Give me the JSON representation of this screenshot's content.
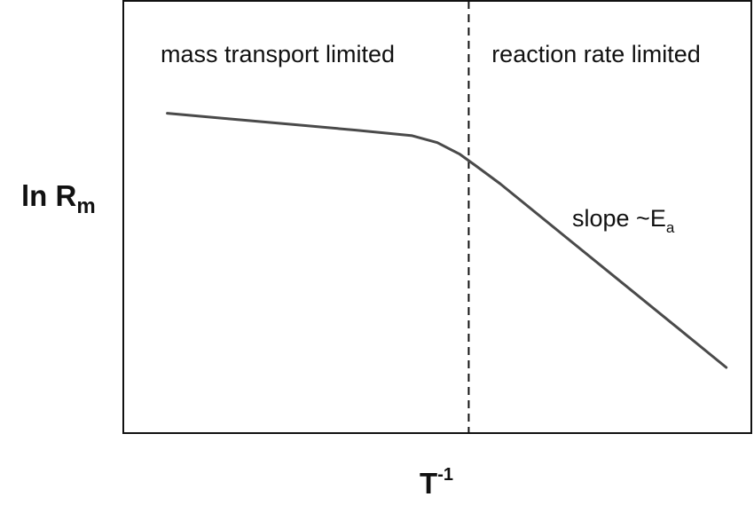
{
  "chart_data": {
    "type": "line",
    "xlabel": {
      "base": "T",
      "superscript": "-1"
    },
    "ylabel": {
      "base": "ln R",
      "subscript": "m"
    },
    "xlim": [
      0,
      1
    ],
    "ylim": [
      0,
      1
    ],
    "grid": false,
    "boundary": {
      "x": 0.55,
      "style": "dashed"
    },
    "regions": [
      {
        "label": "mass transport limited",
        "side": "left"
      },
      {
        "label": "reaction rate limited",
        "side": "right"
      }
    ],
    "series": [
      {
        "color": "#4a4a4a",
        "x": [
          0.07,
          0.17,
          0.27,
          0.37,
          0.46,
          0.5,
          0.535,
          0.56,
          0.6,
          0.7,
          0.8,
          0.9,
          0.96
        ],
        "y": [
          0.74,
          0.727,
          0.714,
          0.701,
          0.688,
          0.672,
          0.646,
          0.62,
          0.577,
          0.459,
          0.341,
          0.223,
          0.152
        ]
      }
    ],
    "annotations": [
      {
        "text": "slope ~E",
        "subscript": "a"
      }
    ]
  }
}
